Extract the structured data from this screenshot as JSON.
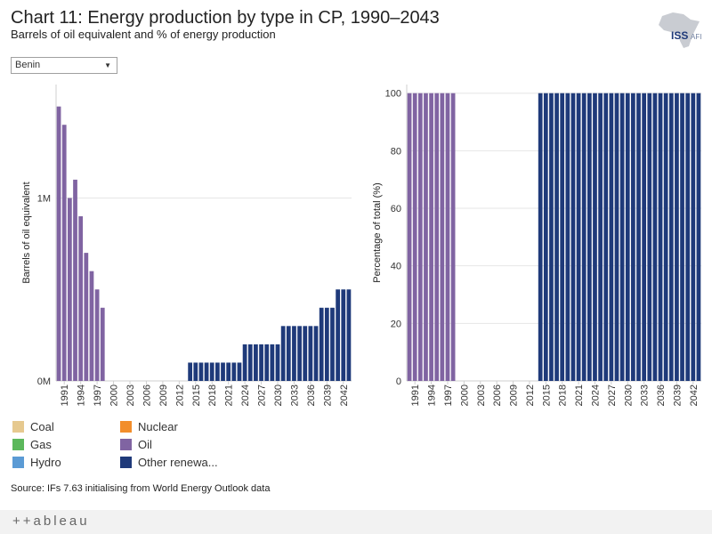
{
  "header": {
    "title": "Chart 11: Energy production by type in CP, 1990–2043",
    "subtitle": "Barrels of oil equivalent and % of energy production"
  },
  "logo": {
    "text": "ISS",
    "suffix": "AFI"
  },
  "filter": {
    "selected": "Benin",
    "caret": "▼"
  },
  "colors": {
    "Coal": "#e6c98f",
    "Gas": "#5cb85c",
    "Hydro": "#5b9bd5",
    "Nuclear": "#f28e2b",
    "Oil": "#8064a2",
    "Other renewables": "#1f3a7a",
    "grid": "#e6e6e6",
    "axis": "#9e9e9e"
  },
  "legend": {
    "items": [
      {
        "label": "Coal",
        "key": "Coal"
      },
      {
        "label": "Gas",
        "key": "Gas"
      },
      {
        "label": "Hydro",
        "key": "Hydro"
      },
      {
        "label": "Nuclear",
        "key": "Nuclear"
      },
      {
        "label": "Oil",
        "key": "Oil"
      },
      {
        "label": "Other renewa...",
        "key": "Other renewables"
      }
    ]
  },
  "source": "Source: IFs 7.63 initialising from World Energy Outlook data",
  "footer": {
    "brand": "+ableau",
    "mark": "+"
  },
  "chart_data": [
    {
      "type": "bar",
      "stacked": true,
      "ylabel": "Barrels of oil equivalent",
      "xlabel": "",
      "ylim": [
        0,
        1.62
      ],
      "yticks": [
        0,
        1
      ],
      "ytick_labels": [
        "0M",
        "1M"
      ],
      "categories": [
        1990,
        1991,
        1992,
        1993,
        1994,
        1995,
        1996,
        1997,
        1998,
        1999,
        2000,
        2001,
        2002,
        2003,
        2004,
        2005,
        2006,
        2007,
        2008,
        2009,
        2010,
        2011,
        2012,
        2013,
        2014,
        2015,
        2016,
        2017,
        2018,
        2019,
        2020,
        2021,
        2022,
        2023,
        2024,
        2025,
        2026,
        2027,
        2028,
        2029,
        2030,
        2031,
        2032,
        2033,
        2034,
        2035,
        2036,
        2037,
        2038,
        2039,
        2040,
        2041,
        2042,
        2043
      ],
      "xtick_labels": [
        "1991",
        "1994",
        "1997",
        "2000",
        "2003",
        "2006",
        "2009",
        "2012",
        "2015",
        "2018",
        "2021",
        "2024",
        "2027",
        "2030",
        "2033",
        "2036",
        "2039",
        "2042"
      ],
      "series": [
        {
          "name": "Oil",
          "values": [
            1.5,
            1.4,
            1.0,
            1.1,
            0.9,
            0.7,
            0.6,
            0.5,
            0.4,
            0,
            0,
            0,
            0,
            0,
            0,
            0,
            0,
            0,
            0,
            0,
            0,
            0,
            0,
            0,
            0,
            0,
            0,
            0,
            0,
            0,
            0,
            0,
            0,
            0,
            0,
            0,
            0,
            0,
            0,
            0,
            0,
            0,
            0,
            0,
            0,
            0,
            0,
            0,
            0,
            0,
            0,
            0,
            0,
            0
          ]
        },
        {
          "name": "Other renewables",
          "values": [
            0,
            0,
            0,
            0,
            0,
            0,
            0,
            0,
            0,
            0,
            0,
            0,
            0,
            0,
            0,
            0,
            0,
            0,
            0,
            0,
            0,
            0,
            0,
            0,
            0.1,
            0.1,
            0.1,
            0.1,
            0.1,
            0.1,
            0.1,
            0.1,
            0.1,
            0.1,
            0.2,
            0.2,
            0.2,
            0.2,
            0.2,
            0.2,
            0.2,
            0.3,
            0.3,
            0.3,
            0.3,
            0.3,
            0.3,
            0.3,
            0.4,
            0.4,
            0.4,
            0.5,
            0.5,
            0.5
          ]
        }
      ]
    },
    {
      "type": "bar",
      "stacked": true,
      "ylabel": "Percentage of total (%)",
      "xlabel": "",
      "ylim": [
        0,
        103
      ],
      "yticks": [
        0,
        20,
        40,
        60,
        80,
        100
      ],
      "ytick_labels": [
        "0",
        "20",
        "40",
        "60",
        "80",
        "100"
      ],
      "categories": [
        1990,
        1991,
        1992,
        1993,
        1994,
        1995,
        1996,
        1997,
        1998,
        1999,
        2000,
        2001,
        2002,
        2003,
        2004,
        2005,
        2006,
        2007,
        2008,
        2009,
        2010,
        2011,
        2012,
        2013,
        2014,
        2015,
        2016,
        2017,
        2018,
        2019,
        2020,
        2021,
        2022,
        2023,
        2024,
        2025,
        2026,
        2027,
        2028,
        2029,
        2030,
        2031,
        2032,
        2033,
        2034,
        2035,
        2036,
        2037,
        2038,
        2039,
        2040,
        2041,
        2042,
        2043
      ],
      "xtick_labels": [
        "1991",
        "1994",
        "1997",
        "2000",
        "2003",
        "2006",
        "2009",
        "2012",
        "2015",
        "2018",
        "2021",
        "2024",
        "2027",
        "2030",
        "2033",
        "2036",
        "2039",
        "2042"
      ],
      "series": [
        {
          "name": "Oil",
          "values": [
            100,
            100,
            100,
            100,
            100,
            100,
            100,
            100,
            100,
            0,
            0,
            0,
            0,
            0,
            0,
            0,
            0,
            0,
            0,
            0,
            0,
            0,
            0,
            0,
            0,
            0,
            0,
            0,
            0,
            0,
            0,
            0,
            0,
            0,
            0,
            0,
            0,
            0,
            0,
            0,
            0,
            0,
            0,
            0,
            0,
            0,
            0,
            0,
            0,
            0,
            0,
            0,
            0,
            0
          ]
        },
        {
          "name": "Other renewables",
          "values": [
            0,
            0,
            0,
            0,
            0,
            0,
            0,
            0,
            0,
            0,
            0,
            0,
            0,
            0,
            0,
            0,
            0,
            0,
            0,
            0,
            0,
            0,
            0,
            0,
            100,
            100,
            100,
            100,
            100,
            100,
            100,
            100,
            100,
            100,
            100,
            100,
            100,
            100,
            100,
            100,
            100,
            100,
            100,
            100,
            100,
            100,
            100,
            100,
            100,
            100,
            100,
            100,
            100,
            100
          ]
        }
      ]
    }
  ]
}
